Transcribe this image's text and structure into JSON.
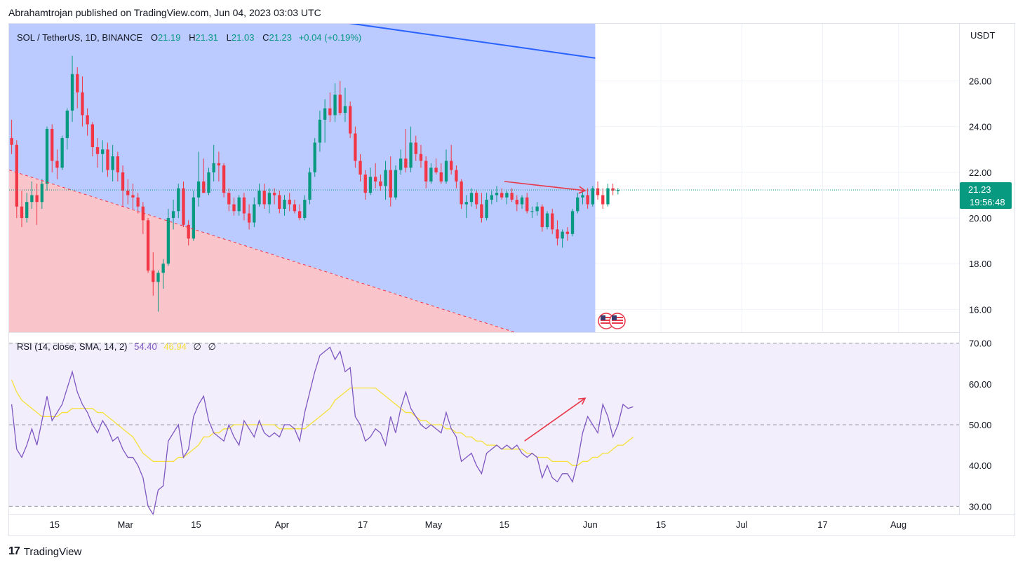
{
  "header": {
    "published": "Abrahamtrojan published on TradingView.com, Jun 04, 2023 03:03 UTC"
  },
  "legend": {
    "symbol": "SOL / TetherUS, 1D, BINANCE",
    "o_label": "O",
    "o": "21.19",
    "h_label": "H",
    "h": "21.31",
    "l_label": "L",
    "l": "21.03",
    "c_label": "C",
    "c": "21.23",
    "change": "+0.04 (+0.19%)"
  },
  "rsi_legend": {
    "name": "RSI (14, close, SMA, 14, 2)",
    "rsi": "54.40",
    "sma": "46.94",
    "na1": "∅",
    "na2": "∅"
  },
  "price_axis": {
    "currency": "USDT",
    "ticks": [
      "26.00",
      "24.00",
      "22.00",
      "20.00",
      "18.00",
      "16.00"
    ],
    "last_price": "21.23",
    "countdown": "19:56:48"
  },
  "rsi_axis": {
    "ticks": [
      "70.00",
      "60.00",
      "50.00",
      "40.00",
      "30.00"
    ]
  },
  "time_axis": {
    "ticks": [
      "15",
      "Mar",
      "15",
      "Apr",
      "17",
      "May",
      "15",
      "Jun",
      "15",
      "Jul",
      "17",
      "Aug"
    ]
  },
  "footer": {
    "brand": "TradingView",
    "logo_glyph": "17"
  },
  "colors": {
    "up": "#089981",
    "down": "#f23645",
    "blue_zone": "#bccbff",
    "red_zone": "#f9c5ca",
    "rsi_line": "#7e57c2",
    "rsi_sma": "#f5e13a",
    "rsi_bg": "#f2eefb",
    "arrow": "#e8394c",
    "trend_line": "#2962ff"
  },
  "chart_data": {
    "type": "candlestick",
    "symbol": "SOL / TetherUS, 1D, BINANCE",
    "x_range": [
      "2023-02-06",
      "2023-08-13"
    ],
    "y_range": [
      15.0,
      28.5
    ],
    "candles_ohlc": [
      [
        23.5,
        24.3,
        22.8,
        23.2
      ],
      [
        23.2,
        23.4,
        20.0,
        20.5
      ],
      [
        20.5,
        21.2,
        19.6,
        20.0
      ],
      [
        20.0,
        21.1,
        19.8,
        20.7
      ],
      [
        20.7,
        21.6,
        20.4,
        21.0
      ],
      [
        21.0,
        21.5,
        19.7,
        20.7
      ],
      [
        20.7,
        21.7,
        20.4,
        21.5
      ],
      [
        21.5,
        24.0,
        21.2,
        23.9
      ],
      [
        23.9,
        24.1,
        22.0,
        22.5
      ],
      [
        22.5,
        23.0,
        21.7,
        22.2
      ],
      [
        22.2,
        23.6,
        22.1,
        23.5
      ],
      [
        23.5,
        24.8,
        23.0,
        24.7
      ],
      [
        24.7,
        27.1,
        24.2,
        26.3
      ],
      [
        26.3,
        26.6,
        24.8,
        25.5
      ],
      [
        25.5,
        26.2,
        24.0,
        24.5
      ],
      [
        24.5,
        24.8,
        23.6,
        24.1
      ],
      [
        24.1,
        24.2,
        22.7,
        23.1
      ],
      [
        23.1,
        23.5,
        22.2,
        22.8
      ],
      [
        22.8,
        23.4,
        22.0,
        23.0
      ],
      [
        23.0,
        23.3,
        21.8,
        22.1
      ],
      [
        22.1,
        23.2,
        21.6,
        22.7
      ],
      [
        22.7,
        22.9,
        21.6,
        22.0
      ],
      [
        22.0,
        22.3,
        20.5,
        21.2
      ],
      [
        21.2,
        21.7,
        20.6,
        21.0
      ],
      [
        21.0,
        21.5,
        20.4,
        20.9
      ],
      [
        20.9,
        21.1,
        20.2,
        20.5
      ],
      [
        20.5,
        20.7,
        19.3,
        19.9
      ],
      [
        19.9,
        20.0,
        17.6,
        17.7
      ],
      [
        17.7,
        18.5,
        16.6,
        17.2
      ],
      [
        17.2,
        17.7,
        15.9,
        17.6
      ],
      [
        17.6,
        18.2,
        16.9,
        18.0
      ],
      [
        18.0,
        20.4,
        17.9,
        20.0
      ],
      [
        20.0,
        20.8,
        19.5,
        20.3
      ],
      [
        20.3,
        21.5,
        20.0,
        21.3
      ],
      [
        21.3,
        21.6,
        19.6,
        19.7
      ],
      [
        19.7,
        19.9,
        18.8,
        19.1
      ],
      [
        19.1,
        21.2,
        19.0,
        20.9
      ],
      [
        20.9,
        22.9,
        20.5,
        21.6
      ],
      [
        21.6,
        22.6,
        21.1,
        21.1
      ],
      [
        21.1,
        22.2,
        21.0,
        22.0
      ],
      [
        22.0,
        23.2,
        21.6,
        22.4
      ],
      [
        22.4,
        22.9,
        21.6,
        22.3
      ],
      [
        22.3,
        22.4,
        20.9,
        21.1
      ],
      [
        21.1,
        21.3,
        20.3,
        20.6
      ],
      [
        20.6,
        20.9,
        20.1,
        20.3
      ],
      [
        20.3,
        21.0,
        20.1,
        20.9
      ],
      [
        20.9,
        21.1,
        19.9,
        20.2
      ],
      [
        20.2,
        20.6,
        19.5,
        19.8
      ],
      [
        19.8,
        20.9,
        19.6,
        20.6
      ],
      [
        20.6,
        21.5,
        20.5,
        21.2
      ],
      [
        21.2,
        21.5,
        20.4,
        20.6
      ],
      [
        20.6,
        21.3,
        20.2,
        21.1
      ],
      [
        21.1,
        21.3,
        20.6,
        21.0
      ],
      [
        21.0,
        21.2,
        20.2,
        20.4
      ],
      [
        20.4,
        21.0,
        20.1,
        20.8
      ],
      [
        20.8,
        21.1,
        20.3,
        20.6
      ],
      [
        20.6,
        20.8,
        20.2,
        20.3
      ],
      [
        20.3,
        20.6,
        19.9,
        20.0
      ],
      [
        20.0,
        21.0,
        19.9,
        20.8
      ],
      [
        20.8,
        22.2,
        20.6,
        22.0
      ],
      [
        22.0,
        23.5,
        21.8,
        23.3
      ],
      [
        23.3,
        24.7,
        22.9,
        24.3
      ],
      [
        24.3,
        25.2,
        23.3,
        24.8
      ],
      [
        24.8,
        25.5,
        24.2,
        24.5
      ],
      [
        24.5,
        25.9,
        24.2,
        25.4
      ],
      [
        25.4,
        26.0,
        24.5,
        24.6
      ],
      [
        24.6,
        25.7,
        24.2,
        24.9
      ],
      [
        24.9,
        25.1,
        23.5,
        23.7
      ],
      [
        23.7,
        24.0,
        22.2,
        22.5
      ],
      [
        22.5,
        22.8,
        21.6,
        21.9
      ],
      [
        21.9,
        22.1,
        20.8,
        21.1
      ],
      [
        21.1,
        22.2,
        21.0,
        21.8
      ],
      [
        21.8,
        22.4,
        21.3,
        21.6
      ],
      [
        21.6,
        21.9,
        21.2,
        21.4
      ],
      [
        21.4,
        22.5,
        20.8,
        22.1
      ],
      [
        22.1,
        22.7,
        20.5,
        20.9
      ],
      [
        20.9,
        22.3,
        20.8,
        22.1
      ],
      [
        22.1,
        23.0,
        21.9,
        22.6
      ],
      [
        22.6,
        23.9,
        22.0,
        22.2
      ],
      [
        22.2,
        24.0,
        22.0,
        23.3
      ],
      [
        23.3,
        23.6,
        22.5,
        22.8
      ],
      [
        22.8,
        23.2,
        22.2,
        22.5
      ],
      [
        22.5,
        22.7,
        21.3,
        21.6
      ],
      [
        21.6,
        22.4,
        21.5,
        22.2
      ],
      [
        22.2,
        22.6,
        21.9,
        22.0
      ],
      [
        22.0,
        22.4,
        21.5,
        21.6
      ],
      [
        21.6,
        23.0,
        21.5,
        22.5
      ],
      [
        22.5,
        23.2,
        21.9,
        22.1
      ],
      [
        22.1,
        22.3,
        21.3,
        21.6
      ],
      [
        21.6,
        21.7,
        20.4,
        20.6
      ],
      [
        20.6,
        21.0,
        20.0,
        20.7
      ],
      [
        20.7,
        21.3,
        20.5,
        21.1
      ],
      [
        21.1,
        21.2,
        20.4,
        20.6
      ],
      [
        20.6,
        21.1,
        19.8,
        20.0
      ],
      [
        20.0,
        21.1,
        19.9,
        20.8
      ],
      [
        20.8,
        21.2,
        20.6,
        21.0
      ],
      [
        21.0,
        21.4,
        20.7,
        21.1
      ],
      [
        21.1,
        21.3,
        20.8,
        20.9
      ],
      [
        20.9,
        21.2,
        20.6,
        21.1
      ],
      [
        21.1,
        21.3,
        20.7,
        20.8
      ],
      [
        20.8,
        21.0,
        20.3,
        20.6
      ],
      [
        20.6,
        21.0,
        20.4,
        20.9
      ],
      [
        20.9,
        21.1,
        20.2,
        20.3
      ],
      [
        20.3,
        20.5,
        20.0,
        20.3
      ],
      [
        20.3,
        20.7,
        20.1,
        20.5
      ],
      [
        20.5,
        20.6,
        19.4,
        19.6
      ],
      [
        19.6,
        20.3,
        19.5,
        20.2
      ],
      [
        20.2,
        20.4,
        19.3,
        19.5
      ],
      [
        19.5,
        19.9,
        18.8,
        19.1
      ],
      [
        19.1,
        19.5,
        18.7,
        19.4
      ],
      [
        19.4,
        19.6,
        19.0,
        19.3
      ],
      [
        19.3,
        20.4,
        19.2,
        20.3
      ],
      [
        20.3,
        21.1,
        20.2,
        20.9
      ],
      [
        20.9,
        21.2,
        20.6,
        21.0
      ],
      [
        21.0,
        21.3,
        20.4,
        20.6
      ],
      [
        20.6,
        21.4,
        20.5,
        21.3
      ],
      [
        21.3,
        21.6,
        20.8,
        21.0
      ],
      [
        21.0,
        21.3,
        20.4,
        20.6
      ],
      [
        20.6,
        21.5,
        20.5,
        21.3
      ],
      [
        21.3,
        21.5,
        21.0,
        21.2
      ],
      [
        21.19,
        21.31,
        21.03,
        21.23
      ]
    ],
    "rsi_14": [
      55,
      44,
      42,
      45,
      49,
      45,
      51,
      57,
      51,
      53,
      55,
      59,
      63,
      58,
      55,
      53,
      50,
      48,
      51,
      49,
      46,
      47,
      44,
      42,
      42,
      40,
      37,
      30,
      28,
      34,
      35,
      46,
      48,
      50,
      42,
      44,
      52,
      55,
      57,
      51,
      48,
      47,
      46,
      50,
      47,
      45,
      51,
      49,
      47,
      51,
      48,
      47,
      48,
      47,
      50,
      50,
      49,
      46,
      53,
      58,
      63,
      67,
      68,
      69,
      66,
      68,
      63,
      64,
      52,
      50,
      46,
      47,
      49,
      48,
      45,
      52,
      48,
      54,
      58,
      54,
      52,
      50,
      49,
      50,
      49,
      48,
      53,
      49,
      47,
      41,
      42,
      43,
      40,
      38,
      43,
      44,
      45,
      44,
      45,
      44,
      45,
      43,
      42,
      43,
      42,
      37,
      40,
      37,
      36,
      38,
      38,
      36,
      41,
      48,
      52,
      50,
      48,
      55,
      52,
      47,
      50,
      55,
      54,
      54.4
    ],
    "rsi_sma_14": [
      61,
      58,
      56,
      55,
      54,
      53,
      52,
      52,
      52,
      52,
      53,
      53,
      54,
      54,
      54,
      54,
      54,
      53,
      53,
      52,
      51,
      50,
      49,
      48,
      47,
      45,
      43,
      42,
      41,
      41,
      41,
      41,
      41,
      42,
      42,
      43,
      44,
      45,
      47,
      47,
      48,
      48,
      49,
      49,
      50,
      50,
      50,
      50,
      50,
      50,
      50,
      50,
      50,
      49,
      49,
      49,
      49,
      49,
      49,
      50,
      51,
      52,
      53,
      54,
      56,
      57,
      58,
      59,
      59,
      59,
      59,
      59,
      59,
      58,
      57,
      56,
      55,
      54,
      53,
      53,
      52,
      51,
      51,
      50,
      50,
      50,
      49,
      49,
      48,
      48,
      47,
      47,
      46,
      46,
      45,
      45,
      45,
      44,
      44,
      44,
      44,
      44,
      43,
      43,
      42,
      42,
      42,
      41,
      41,
      41,
      41,
      40,
      40,
      41,
      41,
      42,
      42,
      43,
      43,
      44,
      45,
      45,
      46,
      46.94
    ],
    "rsi_levels": [
      70,
      50,
      30
    ],
    "rsi_range": [
      28,
      72
    ],
    "last_price": 21.23,
    "drawings": {
      "trend_line_upper": [
        [
          "2023-04-12",
          28.6
        ],
        [
          "2023-06-02",
          27.0
        ]
      ],
      "trend_line_lower_dashed": [
        [
          "2023-02-06",
          22.1
        ],
        [
          "2023-05-17",
          15.0
        ]
      ],
      "zones_end_date": "2023-06-02",
      "price_arrow": [
        [
          "2023-05-15",
          21.6
        ],
        [
          "2023-05-31",
          21.2
        ]
      ],
      "rsi_arrow": [
        [
          "2023-05-19",
          46.0
        ],
        [
          "2023-05-31",
          56.5
        ]
      ]
    }
  }
}
